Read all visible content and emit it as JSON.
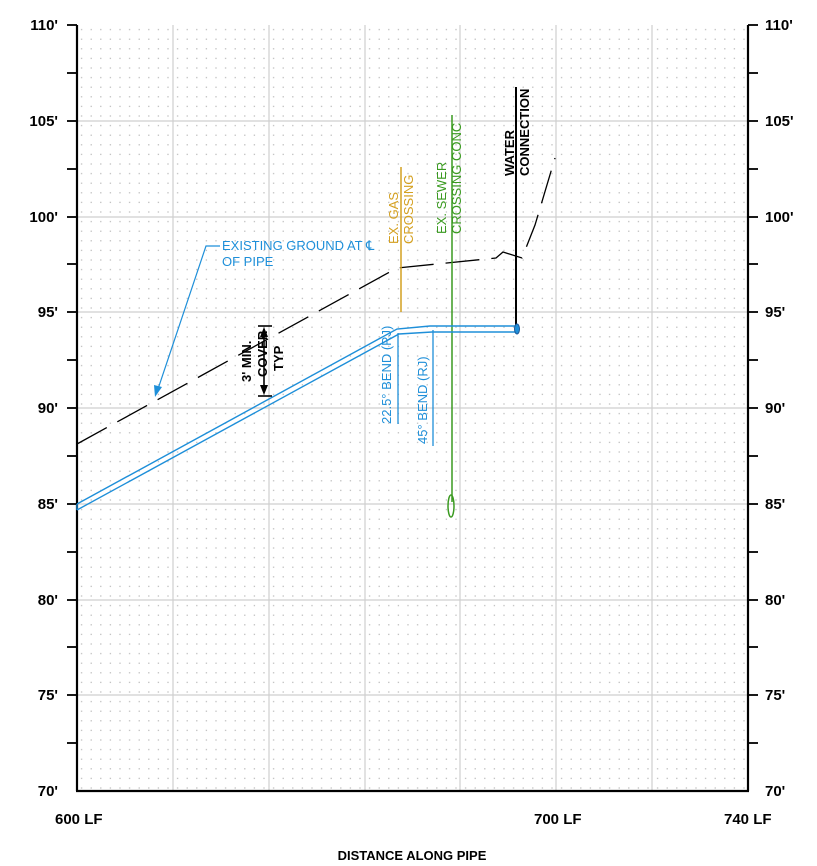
{
  "axes": {
    "y_ticks": [
      "110'",
      "105'",
      "100'",
      "95'",
      "90'",
      "85'",
      "80'",
      "75'",
      "70'"
    ],
    "x_ticks": [
      "600 LF",
      "700 LF",
      "740 LF"
    ],
    "x_label": "DISTANCE ALONG PIPE"
  },
  "annotations": {
    "existing_ground_line1": "EXISTING GROUND AT ℄",
    "existing_ground_line2": "OF PIPE",
    "cover_line1": "3' MIN.",
    "cover_line2": "COVER",
    "cover_line3": "TYP",
    "bend_225": "22.5° BEND (RJ)",
    "bend_45": "45° BEND (RJ)",
    "gas_line1": "EX. GAS",
    "gas_line2": "CROSSING",
    "sewer_line1": "EX. SEWER",
    "sewer_line2": "CROSSING CONC",
    "water_line1": "WATER",
    "water_line2": "CONNECTION"
  },
  "colors": {
    "pipe": "#1e8fd9",
    "gas": "#d4a020",
    "sewer": "#3a9a20",
    "grid": "#cfcfcf",
    "ground": "#000000"
  }
}
